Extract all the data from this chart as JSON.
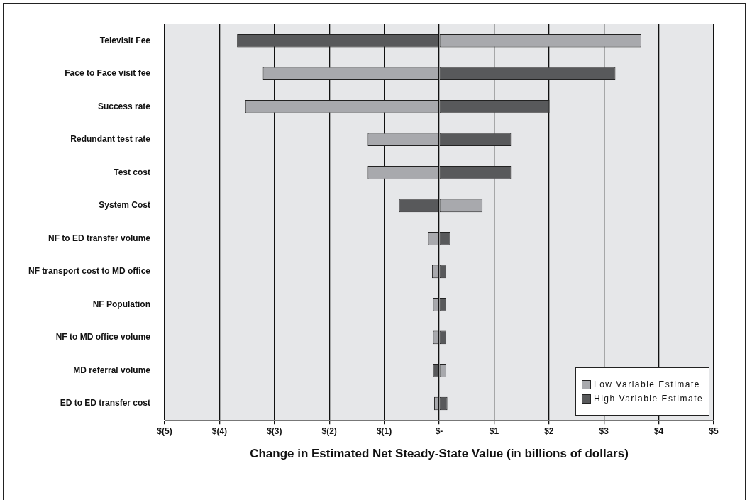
{
  "chart_data": {
    "type": "bar",
    "orientation": "horizontal",
    "stacked": true,
    "xlabel": "Change in Estimated Net Steady-State Value (in billions of dollars)",
    "categories": [
      "Televisit Fee",
      "Face to Face visit fee",
      "Success rate",
      "Redundant test rate",
      "Test cost",
      "System Cost",
      "NF to ED transfer volume",
      "NF transport cost to MD office",
      "NF Population",
      "NF to MD office volume",
      "MD referral volume",
      "ED to ED transfer cost"
    ],
    "series": [
      {
        "name": "Low Variable Estimate",
        "color": "#a8a9ad",
        "values": [
          3.68,
          -3.21,
          -3.53,
          -1.3,
          -1.3,
          0.79,
          -0.2,
          -0.13,
          -0.11,
          -0.11,
          0.13,
          -0.09
        ]
      },
      {
        "name": "High Variable Estimate",
        "color": "#58595b",
        "values": [
          -3.68,
          3.21,
          2.01,
          1.31,
          1.31,
          -0.73,
          0.2,
          0.13,
          0.13,
          0.13,
          -0.11,
          0.15
        ]
      }
    ],
    "xlim": [
      -5,
      5
    ],
    "xticks": [
      {
        "value": -5,
        "label": "$(5)"
      },
      {
        "value": -4,
        "label": "$(4)"
      },
      {
        "value": -3,
        "label": "$(3)"
      },
      {
        "value": -2,
        "label": "$(2)"
      },
      {
        "value": -1,
        "label": "$(1)"
      },
      {
        "value": 0,
        "label": "$-"
      },
      {
        "value": 1,
        "label": "$1"
      },
      {
        "value": 2,
        "label": "$2"
      },
      {
        "value": 3,
        "label": "$3"
      },
      {
        "value": 4,
        "label": "$4"
      },
      {
        "value": 5,
        "label": "$5"
      }
    ],
    "grid": "x",
    "legend": "bottom right"
  }
}
